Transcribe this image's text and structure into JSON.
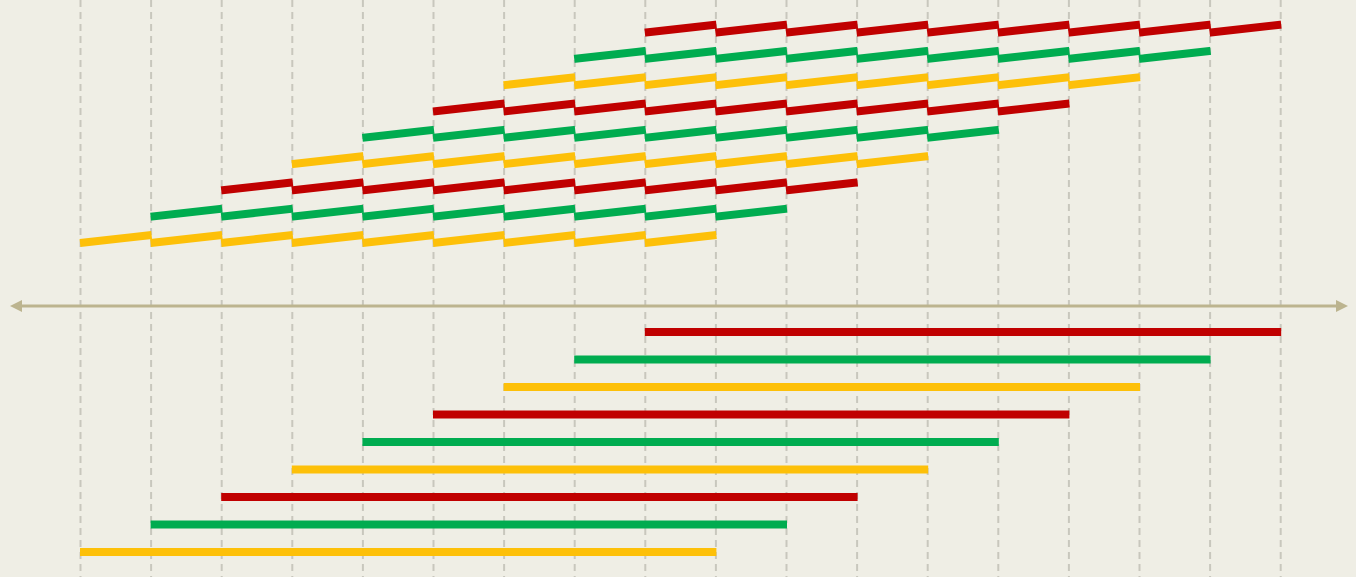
{
  "colors": {
    "background": "#efeee5",
    "grid": "#c8c7bd",
    "axis": "#bcb48f",
    "bar_colors": [
      "#fdc009",
      "#00ac50",
      "#c00000"
    ]
  },
  "diagram": {
    "columns": 18,
    "bars": [
      {
        "start": 0,
        "end": 9,
        "color_index": 0
      },
      {
        "start": 1,
        "end": 10,
        "color_index": 1
      },
      {
        "start": 2,
        "end": 11,
        "color_index": 2
      },
      {
        "start": 3,
        "end": 12,
        "color_index": 0
      },
      {
        "start": 4,
        "end": 13,
        "color_index": 1
      },
      {
        "start": 5,
        "end": 14,
        "color_index": 2
      },
      {
        "start": 6,
        "end": 15,
        "color_index": 0
      },
      {
        "start": 7,
        "end": 16,
        "color_index": 1
      },
      {
        "start": 8,
        "end": 17,
        "color_index": 2
      }
    ]
  }
}
